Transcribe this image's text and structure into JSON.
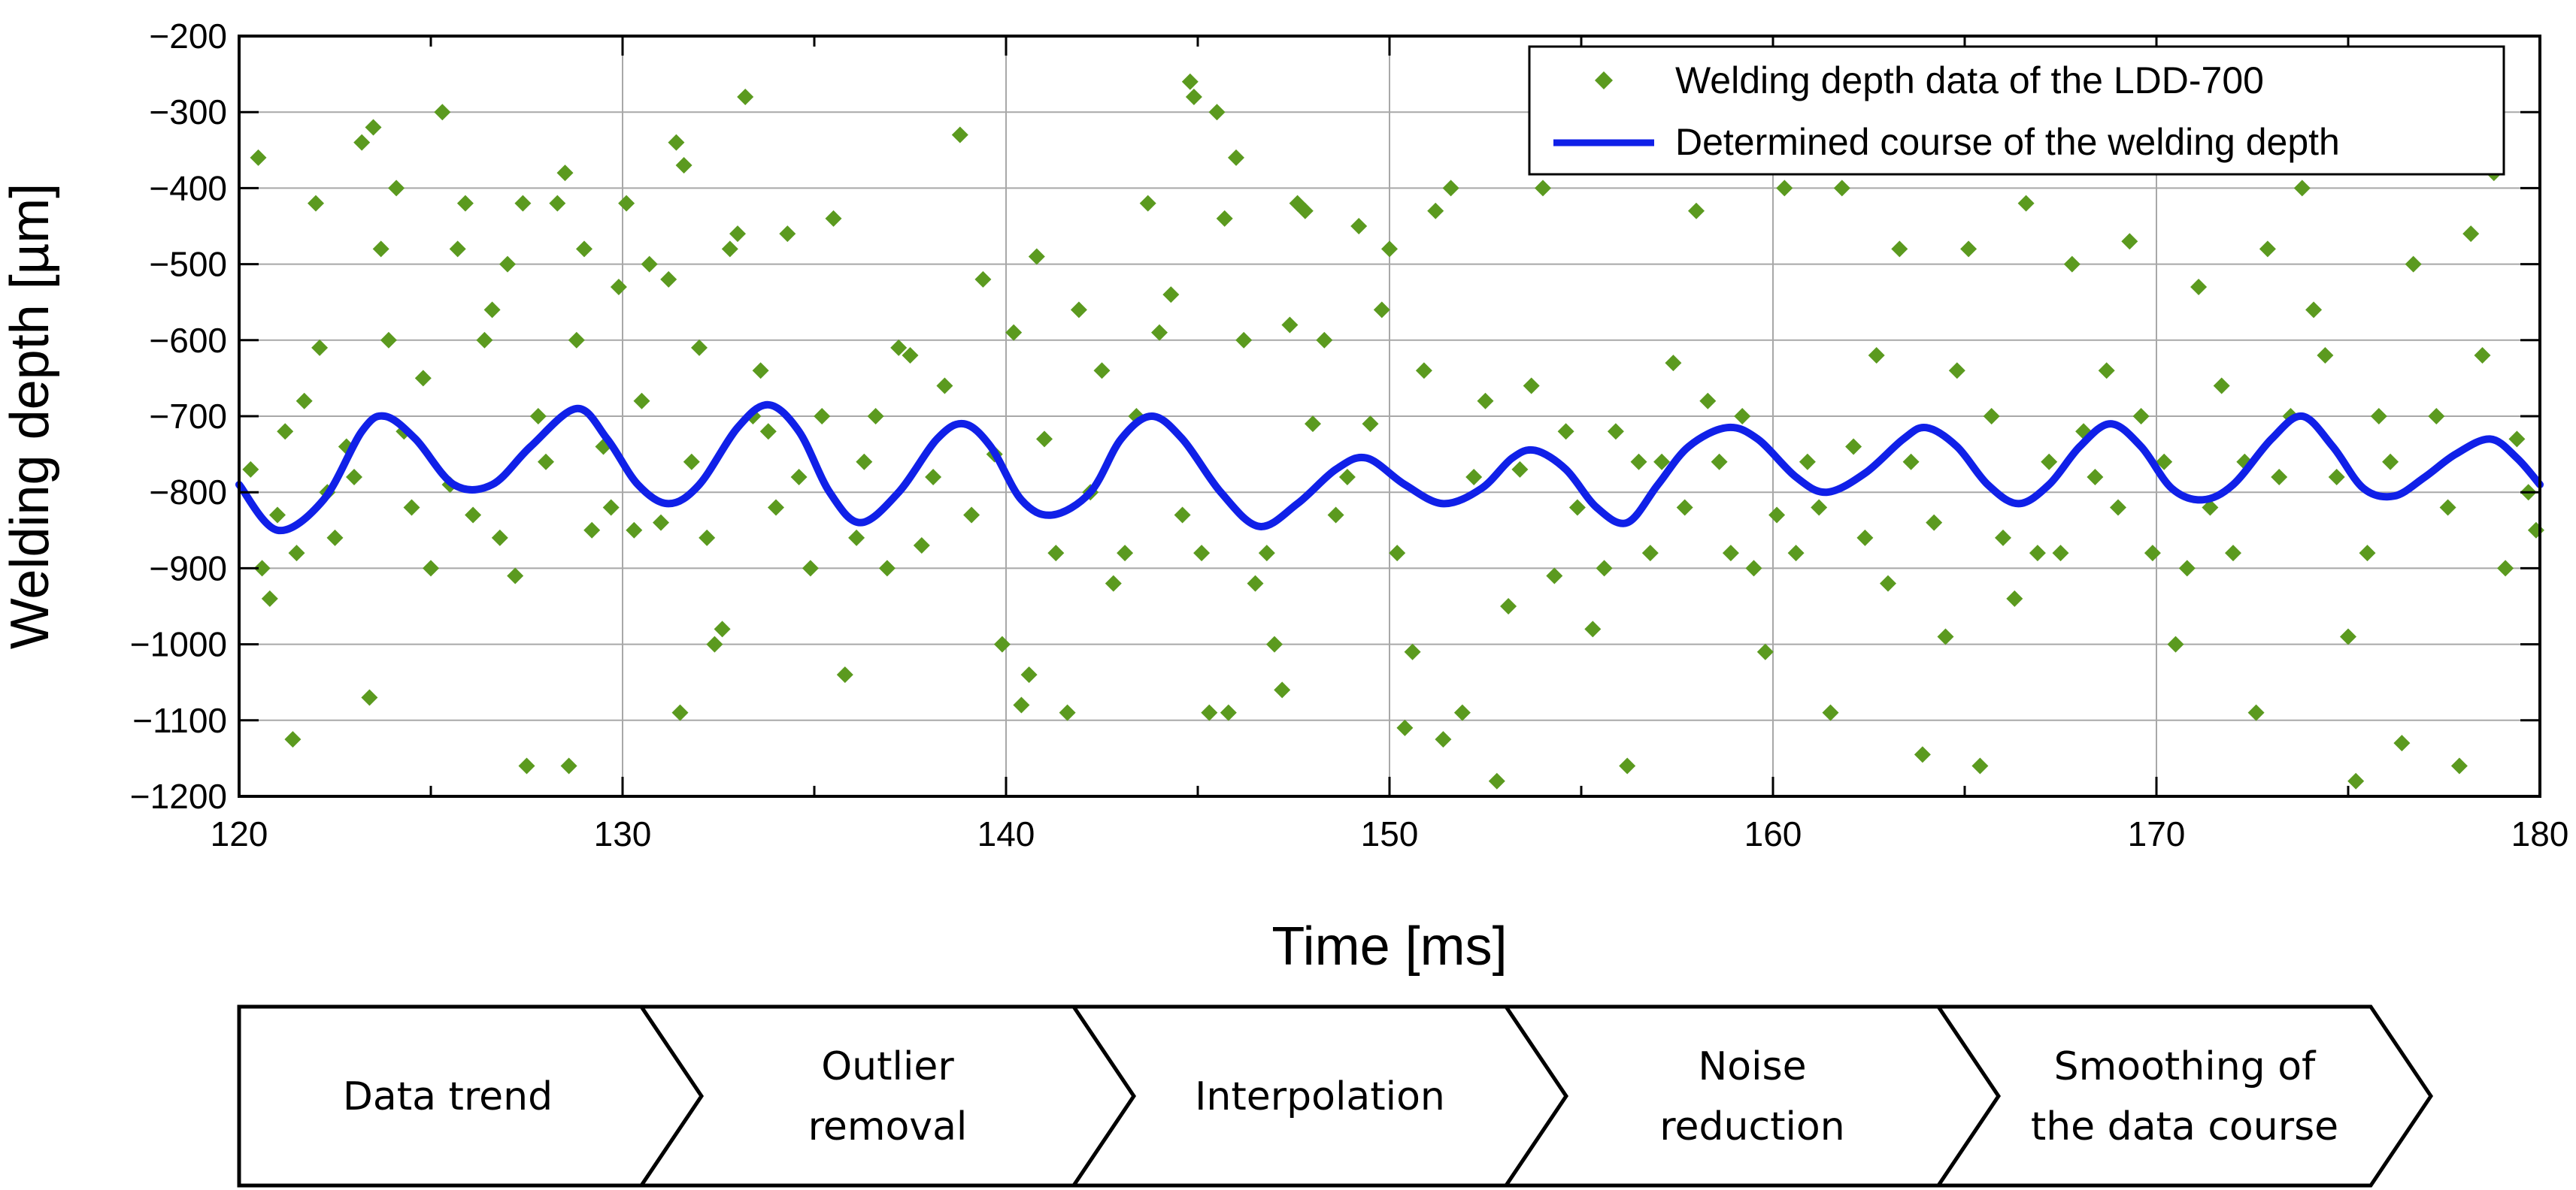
{
  "chart_data": {
    "type": "scatter",
    "xlabel": "Time [ms]",
    "ylabel": "Welding depth [µm]",
    "xlim": [
      120,
      180
    ],
    "ylim": [
      -1200,
      -200
    ],
    "x_ticks": [
      "120",
      "130",
      "140",
      "150",
      "160",
      "170",
      "180"
    ],
    "y_ticks": [
      "-200",
      "-300",
      "-400",
      "-500",
      "-600",
      "-700",
      "-800",
      "-900",
      "-1000",
      "-1100",
      "-1200"
    ],
    "grid": true,
    "legend_position": "top-right",
    "series": [
      {
        "name": "Welding depth data of the LDD-700",
        "kind": "scatter",
        "marker": "diamond",
        "color": "#5b9a1f",
        "points": [
          [
            120.3,
            -770
          ],
          [
            120.5,
            -360
          ],
          [
            120.6,
            -900
          ],
          [
            120.8,
            -940
          ],
          [
            121.0,
            -830
          ],
          [
            121.2,
            -720
          ],
          [
            121.4,
            -1125
          ],
          [
            121.5,
            -880
          ],
          [
            121.7,
            -680
          ],
          [
            122.0,
            -420
          ],
          [
            122.1,
            -610
          ],
          [
            122.3,
            -800
          ],
          [
            122.5,
            -860
          ],
          [
            122.8,
            -740
          ],
          [
            123.0,
            -780
          ],
          [
            123.2,
            -340
          ],
          [
            123.4,
            -1070
          ],
          [
            123.5,
            -320
          ],
          [
            123.7,
            -480
          ],
          [
            123.9,
            -600
          ],
          [
            124.1,
            -400
          ],
          [
            124.3,
            -720
          ],
          [
            124.5,
            -820
          ],
          [
            124.8,
            -650
          ],
          [
            125.0,
            -900
          ],
          [
            125.3,
            -300
          ],
          [
            125.5,
            -790
          ],
          [
            125.7,
            -480
          ],
          [
            125.9,
            -420
          ],
          [
            126.1,
            -830
          ],
          [
            126.4,
            -600
          ],
          [
            126.6,
            -560
          ],
          [
            126.8,
            -860
          ],
          [
            127.0,
            -500
          ],
          [
            127.2,
            -910
          ],
          [
            127.4,
            -420
          ],
          [
            127.5,
            -1160
          ],
          [
            127.8,
            -700
          ],
          [
            128.0,
            -760
          ],
          [
            128.3,
            -420
          ],
          [
            128.5,
            -380
          ],
          [
            128.6,
            -1160
          ],
          [
            128.8,
            -600
          ],
          [
            129.0,
            -480
          ],
          [
            129.2,
            -850
          ],
          [
            129.5,
            -740
          ],
          [
            129.7,
            -820
          ],
          [
            129.9,
            -530
          ],
          [
            130.1,
            -420
          ],
          [
            130.3,
            -850
          ],
          [
            130.5,
            -680
          ],
          [
            130.7,
            -500
          ],
          [
            131.0,
            -840
          ],
          [
            131.2,
            -520
          ],
          [
            131.4,
            -340
          ],
          [
            131.5,
            -1090
          ],
          [
            131.6,
            -370
          ],
          [
            131.8,
            -760
          ],
          [
            132.0,
            -610
          ],
          [
            132.2,
            -860
          ],
          [
            132.4,
            -1000
          ],
          [
            132.6,
            -980
          ],
          [
            132.8,
            -480
          ],
          [
            133.0,
            -460
          ],
          [
            133.2,
            -280
          ],
          [
            133.4,
            -700
          ],
          [
            133.6,
            -640
          ],
          [
            133.8,
            -720
          ],
          [
            134.0,
            -820
          ],
          [
            134.3,
            -460
          ],
          [
            134.6,
            -780
          ],
          [
            134.9,
            -900
          ],
          [
            135.2,
            -700
          ],
          [
            135.5,
            -440
          ],
          [
            135.8,
            -1040
          ],
          [
            136.1,
            -860
          ],
          [
            136.3,
            -760
          ],
          [
            136.6,
            -700
          ],
          [
            136.9,
            -900
          ],
          [
            137.2,
            -610
          ],
          [
            137.5,
            -620
          ],
          [
            137.8,
            -870
          ],
          [
            138.1,
            -780
          ],
          [
            138.4,
            -660
          ],
          [
            138.8,
            -330
          ],
          [
            139.1,
            -830
          ],
          [
            139.4,
            -520
          ],
          [
            139.7,
            -750
          ],
          [
            139.9,
            -1000
          ],
          [
            140.2,
            -590
          ],
          [
            140.4,
            -1080
          ],
          [
            140.6,
            -1040
          ],
          [
            140.8,
            -490
          ],
          [
            141.0,
            -730
          ],
          [
            141.3,
            -880
          ],
          [
            141.6,
            -1090
          ],
          [
            141.9,
            -560
          ],
          [
            142.2,
            -800
          ],
          [
            142.5,
            -640
          ],
          [
            142.8,
            -920
          ],
          [
            143.1,
            -880
          ],
          [
            143.4,
            -700
          ],
          [
            143.7,
            -420
          ],
          [
            144.0,
            -590
          ],
          [
            144.3,
            -540
          ],
          [
            144.6,
            -830
          ],
          [
            144.8,
            -260
          ],
          [
            144.9,
            -280
          ],
          [
            145.1,
            -880
          ],
          [
            145.3,
            -1090
          ],
          [
            145.5,
            -300
          ],
          [
            145.7,
            -440
          ],
          [
            145.8,
            -1090
          ],
          [
            146.0,
            -360
          ],
          [
            146.2,
            -600
          ],
          [
            146.5,
            -920
          ],
          [
            146.8,
            -880
          ],
          [
            147.0,
            -1000
          ],
          [
            147.2,
            -1060
          ],
          [
            147.4,
            -580
          ],
          [
            147.6,
            -420
          ],
          [
            147.8,
            -430
          ],
          [
            148.0,
            -710
          ],
          [
            148.3,
            -600
          ],
          [
            148.6,
            -830
          ],
          [
            148.9,
            -780
          ],
          [
            149.2,
            -450
          ],
          [
            149.5,
            -710
          ],
          [
            149.8,
            -560
          ],
          [
            150.0,
            -480
          ],
          [
            150.2,
            -880
          ],
          [
            150.4,
            -1110
          ],
          [
            150.6,
            -1010
          ],
          [
            150.9,
            -640
          ],
          [
            151.2,
            -430
          ],
          [
            151.4,
            -1125
          ],
          [
            151.6,
            -400
          ],
          [
            151.9,
            -1090
          ],
          [
            152.2,
            -780
          ],
          [
            152.5,
            -680
          ],
          [
            152.8,
            -1180
          ],
          [
            153.1,
            -950
          ],
          [
            153.4,
            -770
          ],
          [
            153.7,
            -660
          ],
          [
            154.0,
            -400
          ],
          [
            154.3,
            -910
          ],
          [
            154.6,
            -720
          ],
          [
            154.9,
            -820
          ],
          [
            155.3,
            -980
          ],
          [
            155.6,
            -900
          ],
          [
            155.9,
            -720
          ],
          [
            156.2,
            -1160
          ],
          [
            156.5,
            -760
          ],
          [
            156.8,
            -880
          ],
          [
            157.1,
            -760
          ],
          [
            157.4,
            -630
          ],
          [
            157.7,
            -820
          ],
          [
            158.0,
            -430
          ],
          [
            158.3,
            -680
          ],
          [
            158.6,
            -760
          ],
          [
            158.9,
            -880
          ],
          [
            159.2,
            -700
          ],
          [
            159.5,
            -900
          ],
          [
            159.8,
            -1010
          ],
          [
            160.1,
            -830
          ],
          [
            160.3,
            -400
          ],
          [
            160.6,
            -880
          ],
          [
            160.9,
            -760
          ],
          [
            161.2,
            -820
          ],
          [
            161.5,
            -1090
          ],
          [
            161.8,
            -400
          ],
          [
            162.1,
            -740
          ],
          [
            162.4,
            -860
          ],
          [
            162.7,
            -620
          ],
          [
            163.0,
            -920
          ],
          [
            163.3,
            -480
          ],
          [
            163.6,
            -760
          ],
          [
            163.9,
            -1145
          ],
          [
            164.2,
            -840
          ],
          [
            164.5,
            -990
          ],
          [
            164.8,
            -640
          ],
          [
            165.1,
            -480
          ],
          [
            165.4,
            -1160
          ],
          [
            165.7,
            -700
          ],
          [
            166.0,
            -860
          ],
          [
            166.3,
            -940
          ],
          [
            166.6,
            -420
          ],
          [
            166.9,
            -880
          ],
          [
            167.2,
            -760
          ],
          [
            167.5,
            -880
          ],
          [
            167.8,
            -500
          ],
          [
            168.1,
            -720
          ],
          [
            168.4,
            -780
          ],
          [
            168.7,
            -640
          ],
          [
            169.0,
            -820
          ],
          [
            169.3,
            -470
          ],
          [
            169.6,
            -700
          ],
          [
            169.9,
            -880
          ],
          [
            170.2,
            -760
          ],
          [
            170.5,
            -1000
          ],
          [
            170.8,
            -900
          ],
          [
            171.1,
            -530
          ],
          [
            171.4,
            -820
          ],
          [
            171.7,
            -660
          ],
          [
            172.0,
            -880
          ],
          [
            172.3,
            -760
          ],
          [
            172.6,
            -1090
          ],
          [
            172.9,
            -480
          ],
          [
            173.2,
            -780
          ],
          [
            173.5,
            -700
          ],
          [
            173.8,
            -400
          ],
          [
            174.1,
            -560
          ],
          [
            174.4,
            -620
          ],
          [
            174.7,
            -780
          ],
          [
            175.0,
            -990
          ],
          [
            175.2,
            -1180
          ],
          [
            175.5,
            -880
          ],
          [
            175.8,
            -700
          ],
          [
            176.1,
            -760
          ],
          [
            176.4,
            -1130
          ],
          [
            176.7,
            -500
          ],
          [
            177.0,
            -360
          ],
          [
            177.3,
            -700
          ],
          [
            177.6,
            -820
          ],
          [
            177.9,
            -1160
          ],
          [
            178.2,
            -460
          ],
          [
            178.5,
            -620
          ],
          [
            178.8,
            -380
          ],
          [
            179.1,
            -900
          ],
          [
            179.4,
            -730
          ],
          [
            179.7,
            -800
          ],
          [
            179.9,
            -850
          ]
        ]
      },
      {
        "name": "Determined course of the welding depth",
        "kind": "line",
        "color": "#1020e8",
        "points": [
          [
            120.0,
            -790
          ],
          [
            121.0,
            -850
          ],
          [
            122.2,
            -810
          ],
          [
            123.2,
            -720
          ],
          [
            123.8,
            -700
          ],
          [
            124.6,
            -730
          ],
          [
            125.6,
            -790
          ],
          [
            126.6,
            -790
          ],
          [
            127.6,
            -740
          ],
          [
            128.8,
            -690
          ],
          [
            129.6,
            -730
          ],
          [
            130.4,
            -790
          ],
          [
            131.2,
            -815
          ],
          [
            132.0,
            -790
          ],
          [
            133.0,
            -715
          ],
          [
            133.8,
            -685
          ],
          [
            134.6,
            -720
          ],
          [
            135.4,
            -800
          ],
          [
            136.2,
            -840
          ],
          [
            137.2,
            -800
          ],
          [
            138.2,
            -730
          ],
          [
            138.9,
            -710
          ],
          [
            139.6,
            -740
          ],
          [
            140.4,
            -810
          ],
          [
            141.2,
            -830
          ],
          [
            142.2,
            -800
          ],
          [
            143.0,
            -730
          ],
          [
            143.8,
            -700
          ],
          [
            144.6,
            -730
          ],
          [
            145.6,
            -800
          ],
          [
            146.6,
            -845
          ],
          [
            147.6,
            -815
          ],
          [
            148.6,
            -770
          ],
          [
            149.4,
            -755
          ],
          [
            150.4,
            -790
          ],
          [
            151.4,
            -815
          ],
          [
            152.4,
            -795
          ],
          [
            153.2,
            -755
          ],
          [
            153.8,
            -745
          ],
          [
            154.6,
            -770
          ],
          [
            155.4,
            -820
          ],
          [
            156.2,
            -840
          ],
          [
            157.0,
            -790
          ],
          [
            157.8,
            -740
          ],
          [
            158.8,
            -715
          ],
          [
            159.6,
            -730
          ],
          [
            160.6,
            -780
          ],
          [
            161.4,
            -800
          ],
          [
            162.4,
            -775
          ],
          [
            163.4,
            -730
          ],
          [
            164.0,
            -715
          ],
          [
            164.8,
            -740
          ],
          [
            165.6,
            -790
          ],
          [
            166.4,
            -815
          ],
          [
            167.2,
            -790
          ],
          [
            168.0,
            -740
          ],
          [
            168.8,
            -710
          ],
          [
            169.6,
            -740
          ],
          [
            170.4,
            -795
          ],
          [
            171.2,
            -810
          ],
          [
            172.0,
            -790
          ],
          [
            173.0,
            -730
          ],
          [
            173.8,
            -700
          ],
          [
            174.6,
            -740
          ],
          [
            175.4,
            -795
          ],
          [
            176.2,
            -805
          ],
          [
            177.0,
            -780
          ],
          [
            177.8,
            -750
          ],
          [
            178.7,
            -730
          ],
          [
            179.4,
            -755
          ],
          [
            180.0,
            -790
          ]
        ]
      }
    ]
  },
  "process_steps": [
    [
      "Data trend"
    ],
    [
      "Outlier",
      "removal"
    ],
    [
      "Interpolation"
    ],
    [
      "Noise",
      "reduction"
    ],
    [
      "Smoothing of",
      "the data course"
    ]
  ]
}
